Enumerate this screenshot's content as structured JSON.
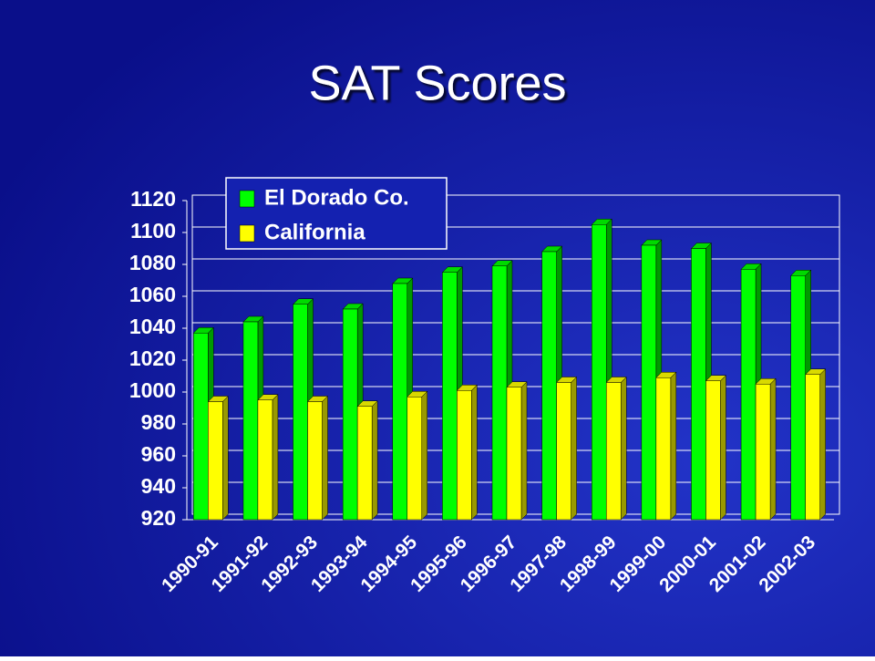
{
  "chart_data": {
    "type": "bar",
    "title": "SAT Scores",
    "categories": [
      "1990-91",
      "1991-92",
      "1992-93",
      "1993-94",
      "1994-95",
      "1995-96",
      "1996-97",
      "1997-98",
      "1998-99",
      "1999-00",
      "2000-01",
      "2001-02",
      "2002-03"
    ],
    "series": [
      {
        "name": "El Dorado Co.",
        "color": "#00ff00",
        "values": [
          1037,
          1044,
          1055,
          1052,
          1068,
          1075,
          1079,
          1088,
          1105,
          1092,
          1090,
          1077,
          1073
        ]
      },
      {
        "name": "California",
        "color": "#ffff00",
        "values": [
          994,
          995,
          994,
          991,
          997,
          1001,
          1003,
          1006,
          1006,
          1009,
          1007,
          1005,
          1011
        ]
      }
    ],
    "ylim": [
      920,
      1120
    ],
    "yticks": [
      920,
      940,
      960,
      980,
      1000,
      1020,
      1040,
      1060,
      1080,
      1100,
      1120
    ],
    "grid": true
  }
}
